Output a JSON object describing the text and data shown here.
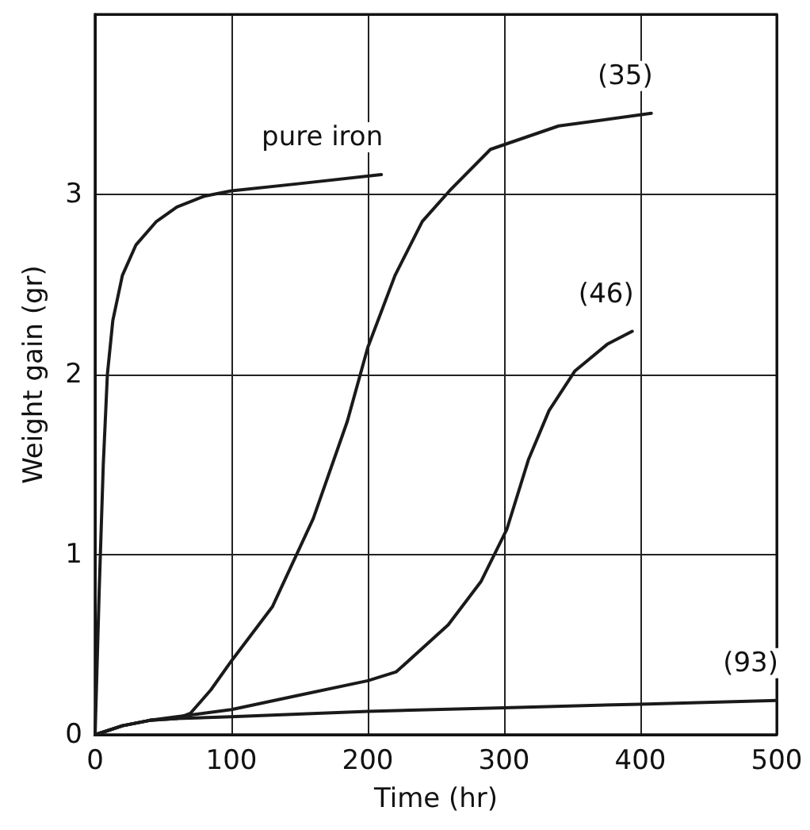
{
  "chart_data": {
    "type": "line",
    "xlabel": "Time (hr)",
    "ylabel": "Weight gain (gr)",
    "xlim": [
      0,
      500
    ],
    "xticks": [
      0,
      100,
      200,
      300,
      400,
      500
    ],
    "ylim": [
      0,
      4
    ],
    "yticks": [
      0,
      1,
      2,
      3,
      {
        "value": 4,
        "label": null
      }
    ],
    "grid": true,
    "marker": "none",
    "line_style": "solid",
    "series": [
      {
        "name": "pure iron",
        "color": "#1a1a1a",
        "x": [
          0,
          3,
          6,
          9,
          13,
          20,
          30,
          45,
          60,
          80,
          100,
          150,
          210
        ],
        "values": [
          0,
          0.8,
          1.5,
          2.0,
          2.3,
          2.55,
          2.72,
          2.85,
          2.93,
          2.99,
          3.02,
          3.06,
          3.11
        ]
      },
      {
        "name": "(35)",
        "color": "#1a1a1a",
        "x": [
          0,
          20,
          40,
          60,
          70,
          85,
          100,
          130,
          160,
          185,
          200,
          220,
          240,
          260,
          290,
          340,
          408
        ],
        "values": [
          0,
          0.05,
          0.08,
          0.09,
          0.12,
          0.25,
          0.41,
          0.71,
          1.2,
          1.74,
          2.15,
          2.55,
          2.85,
          3.02,
          3.25,
          3.38,
          3.45
        ]
      },
      {
        "name": "(46)",
        "color": "#1a1a1a",
        "x": [
          0,
          20,
          40,
          60,
          100,
          150,
          200,
          221,
          259,
          283,
          302,
          318,
          333,
          352,
          376,
          394
        ],
        "values": [
          0,
          0.05,
          0.08,
          0.1,
          0.14,
          0.22,
          0.3,
          0.35,
          0.61,
          0.85,
          1.14,
          1.53,
          1.8,
          2.02,
          2.17,
          2.24
        ]
      },
      {
        "name": "(93)",
        "color": "#1a1a1a",
        "x": [
          0,
          20,
          40,
          60,
          100,
          200,
          300,
          400,
          500
        ],
        "values": [
          0,
          0.05,
          0.08,
          0.09,
          0.1,
          0.13,
          0.15,
          0.17,
          0.19
        ]
      }
    ]
  }
}
